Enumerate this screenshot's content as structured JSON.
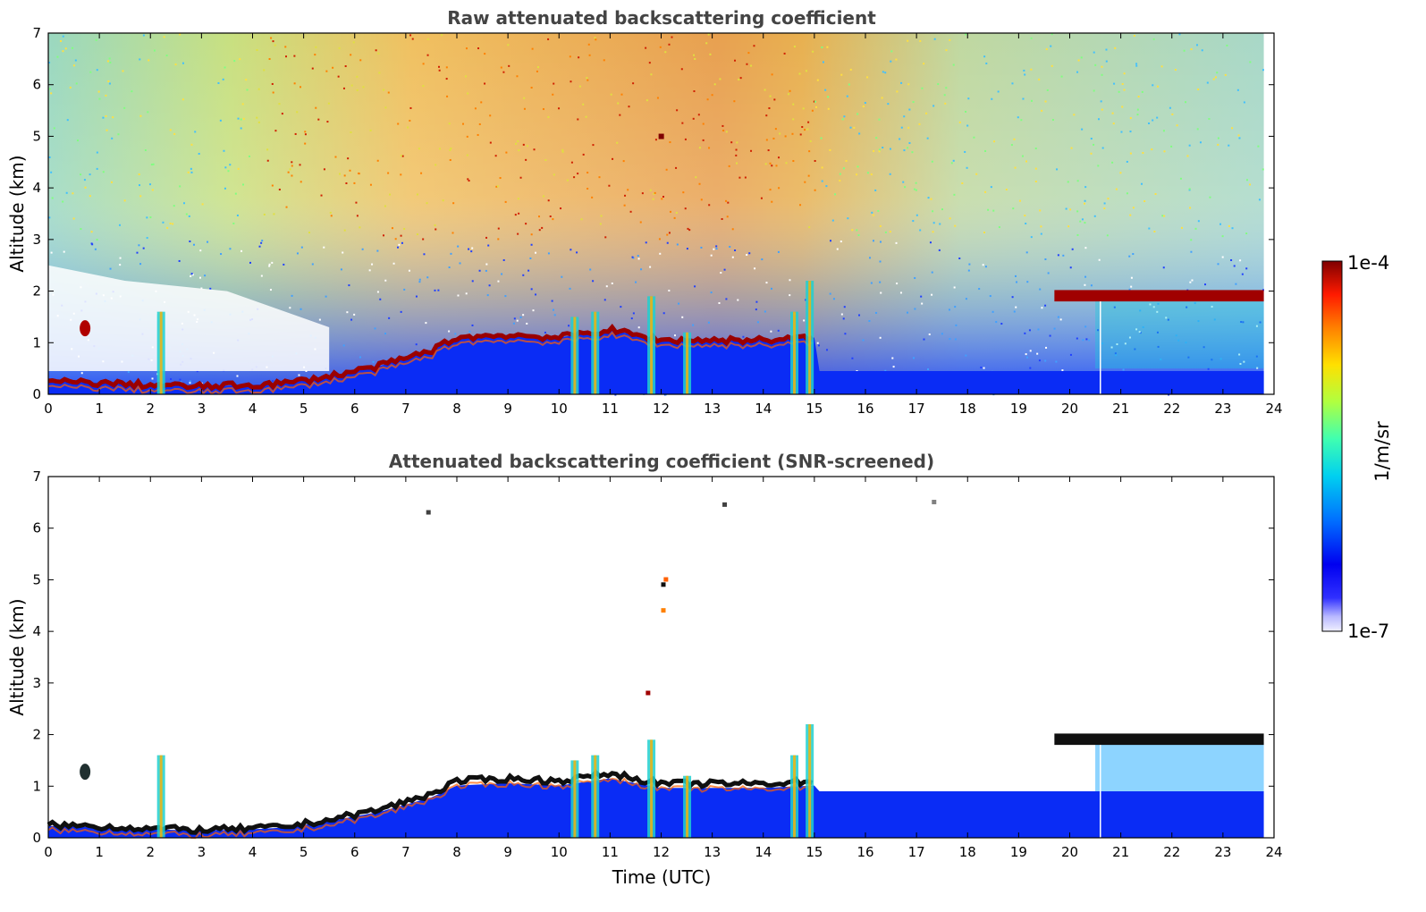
{
  "chart_data": [
    {
      "type": "heatmap",
      "title": "Raw attenuated backscattering coefficient",
      "xlabel": "",
      "ylabel": "Altitude (km)",
      "xlim": [
        0,
        24
      ],
      "ylim": [
        0,
        7
      ],
      "xticks": [
        "0",
        "1",
        "2",
        "3",
        "4",
        "5",
        "6",
        "7",
        "8",
        "9",
        "10",
        "11",
        "12",
        "13",
        "14",
        "15",
        "16",
        "17",
        "18",
        "19",
        "20",
        "21",
        "22",
        "23",
        "24"
      ],
      "yticks": [
        "0",
        "1",
        "2",
        "3",
        "4",
        "5",
        "6",
        "7"
      ],
      "layer_top_km": [
        {
          "t": 0,
          "z": 0.25
        },
        {
          "t": 1,
          "z": 0.22
        },
        {
          "t": 2,
          "z": 0.18
        },
        {
          "t": 3,
          "z": 0.15
        },
        {
          "t": 4,
          "z": 0.18
        },
        {
          "t": 4.7,
          "z": 0.22
        },
        {
          "t": 5.5,
          "z": 0.35
        },
        {
          "t": 6.5,
          "z": 0.55
        },
        {
          "t": 7.5,
          "z": 0.85
        },
        {
          "t": 8,
          "z": 1.1
        },
        {
          "t": 9,
          "z": 1.15
        },
        {
          "t": 10,
          "z": 1.1
        },
        {
          "t": 11,
          "z": 1.25
        },
        {
          "t": 12,
          "z": 1.05
        },
        {
          "t": 13,
          "z": 1.05
        },
        {
          "t": 14,
          "z": 1.05
        },
        {
          "t": 15,
          "z": 1.1
        }
      ],
      "cloud_layer_km": {
        "t_start": 19.7,
        "t_end": 23.8,
        "z": 1.9
      }
    },
    {
      "type": "heatmap",
      "title": "Attenuated backscattering coefficient (SNR-screened)",
      "xlabel": "Time (UTC)",
      "ylabel": "Altitude (km)",
      "xlim": [
        0,
        24
      ],
      "ylim": [
        0,
        7
      ],
      "xticks": [
        "0",
        "1",
        "2",
        "3",
        "4",
        "5",
        "6",
        "7",
        "8",
        "9",
        "10",
        "11",
        "12",
        "13",
        "14",
        "15",
        "16",
        "17",
        "18",
        "19",
        "20",
        "21",
        "22",
        "23",
        "24"
      ],
      "yticks": [
        "0",
        "1",
        "2",
        "3",
        "4",
        "5",
        "6",
        "7"
      ]
    }
  ],
  "colorbar": {
    "max_label": "1e-4",
    "min_label": "1e-7",
    "unit_label": "1/m/sr",
    "colors": [
      "#7f0000",
      "#cc0000",
      "#ff4000",
      "#ff9900",
      "#ffe000",
      "#c8ff30",
      "#60ff90",
      "#10e0e0",
      "#00a0ff",
      "#0050ff",
      "#0000f0",
      "#6060ff",
      "#c0c0ff",
      "#f0f0ff"
    ]
  }
}
